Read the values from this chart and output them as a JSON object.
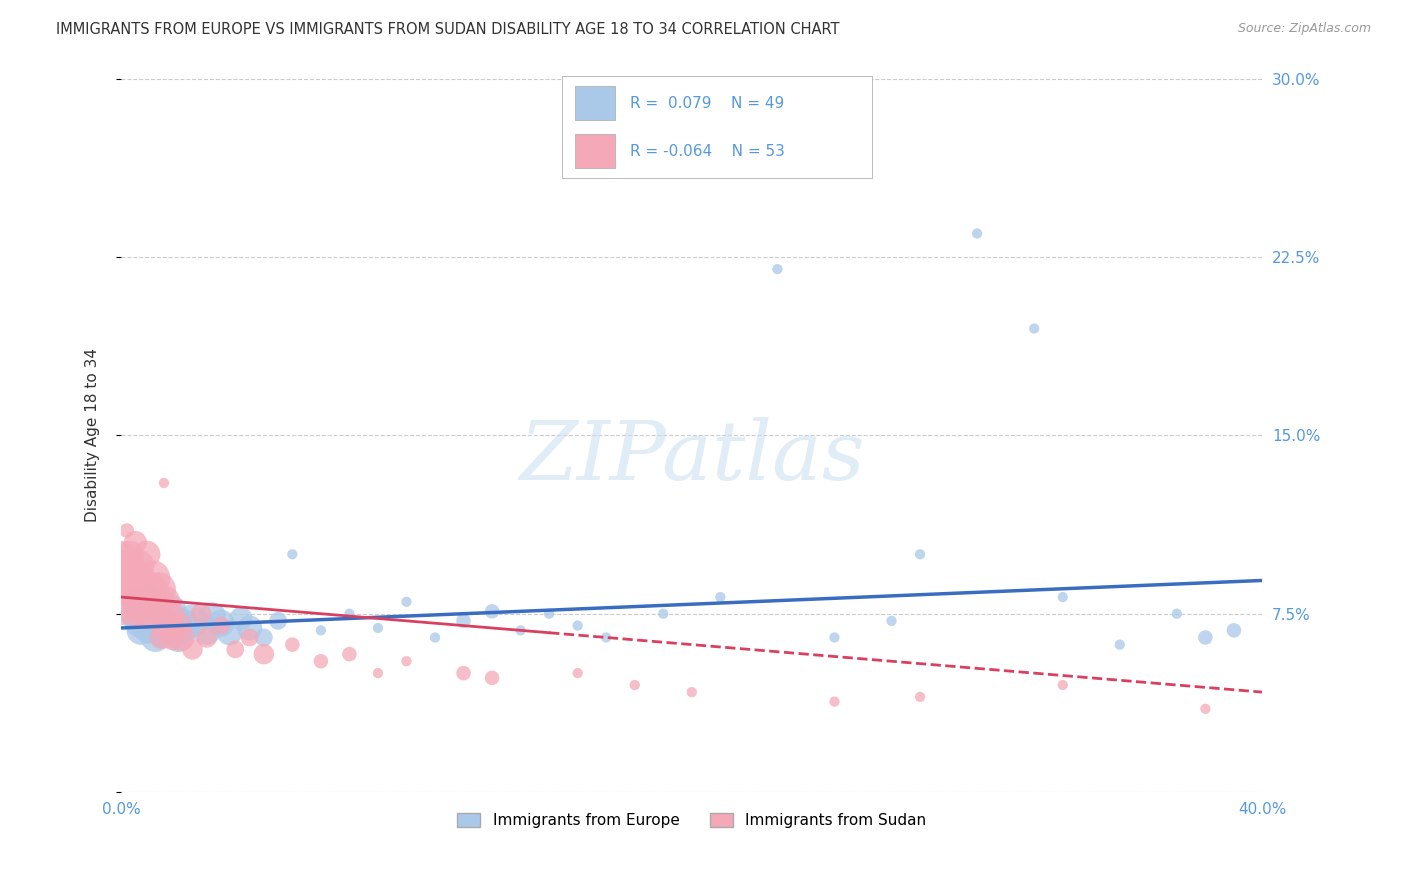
{
  "title": "IMMIGRANTS FROM EUROPE VS IMMIGRANTS FROM SUDAN DISABILITY AGE 18 TO 34 CORRELATION CHART",
  "source": "Source: ZipAtlas.com",
  "ylabel": "Disability Age 18 to 34",
  "xlim": [
    0.0,
    0.4
  ],
  "ylim": [
    0.0,
    0.3
  ],
  "xticks": [
    0.0,
    0.05,
    0.1,
    0.15,
    0.2,
    0.25,
    0.3,
    0.35,
    0.4
  ],
  "yticks": [
    0.0,
    0.075,
    0.15,
    0.225,
    0.3
  ],
  "yticklabels": [
    "",
    "7.5%",
    "15.0%",
    "22.5%",
    "30.0%"
  ],
  "europe_R": 0.079,
  "europe_N": 49,
  "sudan_R": -0.064,
  "sudan_N": 53,
  "europe_color": "#aac8e8",
  "europe_line_color": "#3a6dbf",
  "sudan_color": "#f4a8b8",
  "sudan_line_color": "#d94060",
  "watermark_text": "ZIPatlas",
  "background_color": "#ffffff",
  "title_color": "#333333",
  "axis_label_color": "#5599dd",
  "grid_color": "#cccccc",
  "europe_x": [
    0.005,
    0.005,
    0.007,
    0.007,
    0.009,
    0.01,
    0.01,
    0.012,
    0.012,
    0.015,
    0.015,
    0.017,
    0.019,
    0.02,
    0.022,
    0.025,
    0.03,
    0.032,
    0.035,
    0.038,
    0.042,
    0.045,
    0.05,
    0.055,
    0.06,
    0.07,
    0.08,
    0.09,
    0.1,
    0.11,
    0.12,
    0.13,
    0.14,
    0.15,
    0.16,
    0.17,
    0.19,
    0.21,
    0.23,
    0.25,
    0.27,
    0.28,
    0.3,
    0.32,
    0.33,
    0.35,
    0.37,
    0.38,
    0.39
  ],
  "europe_y": [
    0.075,
    0.08,
    0.072,
    0.068,
    0.078,
    0.082,
    0.07,
    0.075,
    0.065,
    0.073,
    0.068,
    0.076,
    0.071,
    0.065,
    0.07,
    0.072,
    0.068,
    0.074,
    0.071,
    0.067,
    0.073,
    0.069,
    0.065,
    0.072,
    0.1,
    0.068,
    0.075,
    0.069,
    0.08,
    0.065,
    0.072,
    0.076,
    0.068,
    0.075,
    0.07,
    0.065,
    0.075,
    0.082,
    0.22,
    0.065,
    0.072,
    0.1,
    0.235,
    0.195,
    0.082,
    0.062,
    0.075,
    0.065,
    0.068
  ],
  "sudan_x": [
    0.0,
    0.0,
    0.0,
    0.0,
    0.002,
    0.002,
    0.003,
    0.003,
    0.004,
    0.004,
    0.005,
    0.005,
    0.005,
    0.006,
    0.006,
    0.007,
    0.008,
    0.008,
    0.009,
    0.01,
    0.01,
    0.011,
    0.012,
    0.013,
    0.014,
    0.015,
    0.015,
    0.016,
    0.017,
    0.018,
    0.02,
    0.021,
    0.025,
    0.028,
    0.03,
    0.035,
    0.04,
    0.045,
    0.05,
    0.06,
    0.07,
    0.08,
    0.09,
    0.1,
    0.12,
    0.13,
    0.16,
    0.18,
    0.2,
    0.25,
    0.28,
    0.33,
    0.38
  ],
  "sudan_y": [
    0.09,
    0.095,
    0.1,
    0.075,
    0.085,
    0.11,
    0.095,
    0.1,
    0.085,
    0.09,
    0.105,
    0.09,
    0.075,
    0.085,
    0.095,
    0.08,
    0.085,
    0.075,
    0.1,
    0.085,
    0.075,
    0.09,
    0.08,
    0.085,
    0.065,
    0.13,
    0.08,
    0.07,
    0.075,
    0.065,
    0.07,
    0.065,
    0.06,
    0.075,
    0.065,
    0.07,
    0.06,
    0.065,
    0.058,
    0.062,
    0.055,
    0.058,
    0.05,
    0.055,
    0.05,
    0.048,
    0.05,
    0.045,
    0.042,
    0.038,
    0.04,
    0.045,
    0.035
  ],
  "europe_trendline": [
    0.069,
    0.089
  ],
  "sudan_trendline_solid_end": 0.15,
  "sudan_trendline": [
    0.082,
    0.042
  ]
}
